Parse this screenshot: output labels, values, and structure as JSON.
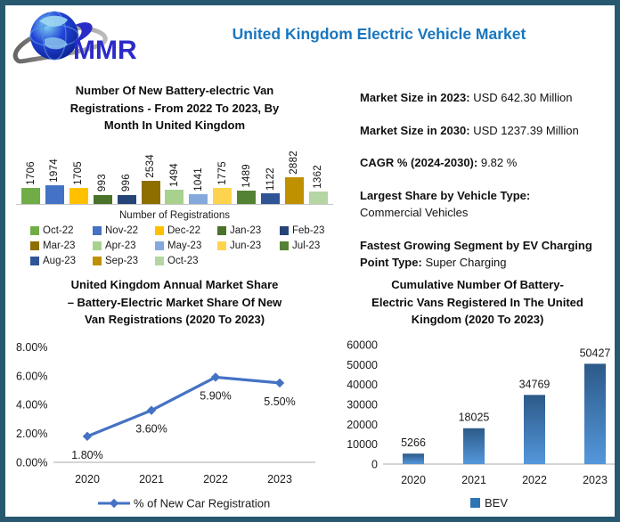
{
  "header": {
    "title": "United Kingdom Electric Vehicle Market",
    "logo_text": "MMR"
  },
  "facts": {
    "items": [
      {
        "label": "Market Size in 2023:",
        "value": "USD 642.30 Million"
      },
      {
        "label": "Market Size in 2030:",
        "value": "USD 1237.39 Million"
      },
      {
        "label": "CAGR % (2024-2030):",
        "value": "9.82 %"
      },
      {
        "label": "Largest Share by Vehicle Type:",
        "value": "Commercial Vehicles"
      },
      {
        "label": "Fastest Growing Segment by EV Charging Point Type:",
        "value": "Super Charging"
      }
    ]
  },
  "chart_data": [
    {
      "id": "monthly_registrations",
      "type": "bar",
      "title": "Number Of New Battery-electric Van\nRegistrations - From 2022 To 2023, By\nMonth In United Kingdom",
      "legend_title": "Number of Registrations",
      "categories": [
        "Oct-22",
        "Nov-22",
        "Dec-22",
        "Jan-23",
        "Feb-23",
        "Mar-23",
        "Apr-23",
        "May-23",
        "Jun-23",
        "Jul-23",
        "Aug-23",
        "Sep-23",
        "Oct-23"
      ],
      "values": [
        1706,
        1974,
        1705,
        993,
        996,
        2534,
        1494,
        1041,
        1775,
        1489,
        1122,
        2882,
        1362
      ],
      "colors": [
        "#70AD47",
        "#4472C4",
        "#FFC000",
        "#4A7229",
        "#264478",
        "#8F6E00",
        "#A9D18E",
        "#85A9DC",
        "#FFD34D",
        "#548235",
        "#2F5597",
        "#BF9000",
        "#B5D5A2"
      ],
      "ylim": [
        0,
        2882
      ],
      "grid": false
    },
    {
      "id": "annual_market_share",
      "type": "line",
      "title": "United Kingdom Annual Market Share\n– Battery-Electric Market Share Of New\nVan Registrations (2020 To 2023)",
      "x": [
        "2020",
        "2021",
        "2022",
        "2023"
      ],
      "values": [
        1.8,
        3.6,
        5.9,
        5.5
      ],
      "point_labels": [
        "1.80%",
        "3.60%",
        "5.90%",
        "5.50%"
      ],
      "ytick_values": [
        0,
        2,
        4,
        6,
        8
      ],
      "ytick_labels": [
        "0.00%",
        "2.00%",
        "4.00%",
        "6.00%",
        "8.00%"
      ],
      "ylim": [
        0,
        8
      ],
      "legend": "% of New Car Registration",
      "line_color": "#4472C4",
      "grid": false,
      "legend_position": "bottom"
    },
    {
      "id": "cumulative_bev",
      "type": "bar",
      "title": "Cumulative Number Of Battery-\nElectric Vans Registered In The United\nKingdom (2020 To 2023)",
      "categories": [
        "2020",
        "2021",
        "2022",
        "2023"
      ],
      "values": [
        5266,
        18025,
        34769,
        50427
      ],
      "ytick_values": [
        0,
        10000,
        20000,
        30000,
        40000,
        50000,
        60000
      ],
      "ylim": [
        0,
        60000
      ],
      "legend": "BEV",
      "bar_gradient": [
        "#2C5A88",
        "#5497DB"
      ],
      "legend_color": "#2E74B5",
      "grid": false,
      "legend_position": "bottom"
    }
  ],
  "colors": {
    "frame_border": "#28586F",
    "title_blue": "#1976BE",
    "axis_line": "#C6C6C6",
    "logo_text_blue": "#2B2BC8"
  }
}
